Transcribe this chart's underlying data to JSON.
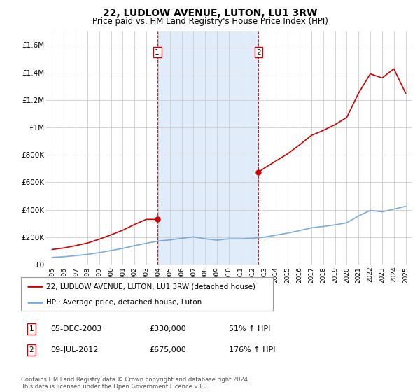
{
  "title": "22, LUDLOW AVENUE, LUTON, LU1 3RW",
  "subtitle": "Price paid vs. HM Land Registry's House Price Index (HPI)",
  "title_fontsize": 10,
  "subtitle_fontsize": 8.5,
  "ylabel_ticks": [
    "£0",
    "£200K",
    "£400K",
    "£600K",
    "£800K",
    "£1M",
    "£1.2M",
    "£1.4M",
    "£1.6M"
  ],
  "ytick_values": [
    0,
    200000,
    400000,
    600000,
    800000,
    1000000,
    1200000,
    1400000,
    1600000
  ],
  "ylim": [
    0,
    1700000
  ],
  "xlim_start": 1994.5,
  "xlim_end": 2025.5,
  "sale1_x": 2003.92,
  "sale1_y": 330000,
  "sale2_x": 2012.52,
  "sale2_y": 675000,
  "sale1_label": "1",
  "sale2_label": "2",
  "vline1_x": 2003.92,
  "vline2_x": 2012.52,
  "shade_color": "#cce0f5",
  "red_line_color": "#cc0000",
  "blue_line_color": "#7aaadd",
  "legend_label1": "22, LUDLOW AVENUE, LUTON, LU1 3RW (detached house)",
  "legend_label2": "HPI: Average price, detached house, Luton",
  "table_row1": [
    "1",
    "05-DEC-2003",
    "£330,000",
    "51% ↑ HPI"
  ],
  "table_row2": [
    "2",
    "09-JUL-2012",
    "£675,000",
    "176% ↑ HPI"
  ],
  "footer": "Contains HM Land Registry data © Crown copyright and database right 2024.\nThis data is licensed under the Open Government Licence v3.0.",
  "bg_color": "#ffffff",
  "grid_color": "#cccccc",
  "hpi_years": [
    1995,
    1996,
    1997,
    1998,
    1999,
    2000,
    2001,
    2002,
    2003,
    2004,
    2005,
    2006,
    2007,
    2008,
    2009,
    2010,
    2011,
    2012,
    2013,
    2014,
    2015,
    2016,
    2017,
    2018,
    2019,
    2020,
    2021,
    2022,
    2023,
    2024,
    2025
  ],
  "hpi_values": [
    52000,
    57000,
    65000,
    74000,
    87000,
    102000,
    118000,
    138000,
    155000,
    172000,
    180000,
    192000,
    202000,
    188000,
    178000,
    188000,
    188000,
    192000,
    200000,
    215000,
    230000,
    248000,
    268000,
    278000,
    290000,
    305000,
    355000,
    395000,
    385000,
    405000,
    425000
  ],
  "red_years_p1": [
    1995,
    1996,
    1997,
    1998,
    1999,
    2000,
    2001,
    2002,
    2003,
    2003.92
  ],
  "red_values_p1": [
    110000,
    121000,
    138000,
    157000,
    185000,
    217000,
    251000,
    293000,
    330000,
    330000
  ],
  "red_years_p2": [
    2012.52,
    2013,
    2014,
    2015,
    2016,
    2017,
    2018,
    2019,
    2020,
    2021,
    2022,
    2023,
    2024,
    2025
  ],
  "red_values_p2": [
    675000,
    703000,
    756000,
    809000,
    873000,
    942000,
    978000,
    1020000,
    1073000,
    1249000,
    1390000,
    1360000,
    1427000,
    1248000
  ]
}
